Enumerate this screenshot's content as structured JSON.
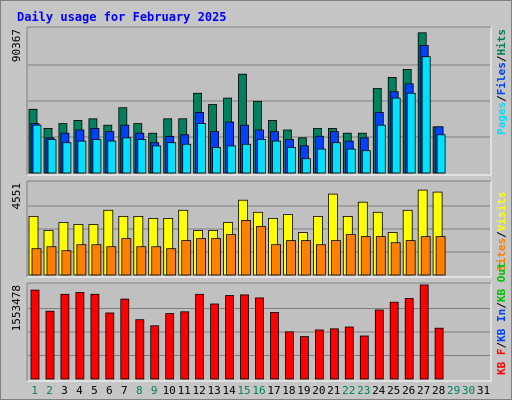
{
  "chart_data": {
    "type": "bar",
    "title": "Daily usage for February 2025",
    "colors": {
      "hits": "#00805c",
      "files": "#0040ff",
      "pages": "#00e0ff",
      "visits": "#ffff00",
      "sites": "#ff8000",
      "kbin": "#ff0000",
      "kbout": "#00c000",
      "title": "#0000ff",
      "day_weekday": "#000000",
      "day_weekend": "#00805c",
      "panel_bg": "#c0c0c0",
      "frame_bg": "#c6c6c6",
      "grid": "#808080"
    },
    "categories": [
      "1",
      "2",
      "3",
      "4",
      "5",
      "6",
      "7",
      "8",
      "9",
      "10",
      "11",
      "12",
      "13",
      "14",
      "15",
      "16",
      "17",
      "18",
      "19",
      "20",
      "21",
      "22",
      "23",
      "24",
      "25",
      "26",
      "27",
      "28",
      "29",
      "30",
      "31"
    ],
    "weekend_days": [
      "1",
      "2",
      "8",
      "9",
      "15",
      "16",
      "22",
      "23",
      "29",
      "30"
    ],
    "panels": [
      {
        "id": "usage",
        "max_label": "90367",
        "max": 90367,
        "legend": [
          {
            "text": "Pages",
            "color": "#00e0ff"
          },
          {
            "text": "/",
            "color": "#000000"
          },
          {
            "text": "Files",
            "color": "#0040ff"
          },
          {
            "text": "/",
            "color": "#000000"
          },
          {
            "text": "Hits",
            "color": "#00805c"
          }
        ],
        "series": [
          {
            "name": "Hits",
            "color": "#00805c",
            "values": [
              40000,
              28000,
              31000,
              33000,
              34000,
              30000,
              41000,
              31000,
              25000,
              34000,
              34000,
              50000,
              43000,
              47000,
              62000,
              45000,
              33000,
              27000,
              22000,
              28000,
              28000,
              25000,
              25000,
              53000,
              60000,
              65000,
              88000,
              29000,
              null,
              null,
              null
            ]
          },
          {
            "name": "Files",
            "color": "#0040ff",
            "values": [
              31000,
              22000,
              25000,
              27000,
              28000,
              26000,
              30000,
              25000,
              19000,
              23000,
              24000,
              38000,
              26000,
              32000,
              30000,
              27000,
              26000,
              21000,
              17000,
              23000,
              26000,
              20000,
              22000,
              38000,
              51000,
              56000,
              80000,
              29000,
              null,
              null,
              null
            ]
          },
          {
            "name": "Pages",
            "color": "#00e0ff",
            "values": [
              30000,
              21000,
              19000,
              20000,
              21000,
              20000,
              22000,
              21000,
              17000,
              19000,
              18000,
              31000,
              16000,
              17000,
              18000,
              21000,
              20000,
              16000,
              9000,
              15000,
              19000,
              15000,
              14000,
              30000,
              47000,
              50000,
              73000,
              24000,
              null,
              null,
              null
            ]
          }
        ]
      },
      {
        "id": "visits",
        "max_label": "4551",
        "max": 4551,
        "legend": [
          {
            "text": "Sites",
            "color": "#ff8000"
          },
          {
            "text": "/",
            "color": "#000000"
          },
          {
            "text": "Visits",
            "color": "#ffff00"
          }
        ],
        "series": [
          {
            "name": "Visits",
            "color": "#ffff00",
            "values": [
              2900,
              2200,
              2600,
              2500,
              2500,
              3200,
              2900,
              2900,
              2800,
              2800,
              3200,
              2200,
              2200,
              2600,
              3700,
              3100,
              2800,
              3000,
              2100,
              2900,
              4000,
              2900,
              3600,
              3100,
              2100,
              3200,
              4200,
              4100,
              null,
              null,
              null
            ]
          },
          {
            "name": "Sites",
            "color": "#ff8000",
            "values": [
              1300,
              1400,
              1200,
              1500,
              1500,
              1400,
              1800,
              1400,
              1400,
              1300,
              1700,
              1800,
              1800,
              2000,
              2700,
              2400,
              1500,
              1700,
              1700,
              1500,
              1700,
              2000,
              1900,
              1900,
              1600,
              1700,
              1900,
              1900,
              null,
              null,
              null
            ]
          }
        ]
      },
      {
        "id": "kbytes",
        "max_label": "1553478",
        "max": 1553478,
        "legend": [
          {
            "text": "KB F",
            "color": "#ff0000"
          },
          {
            "text": "/",
            "color": "#000000"
          },
          {
            "text": "KB In",
            "color": "#0040ff"
          },
          {
            "text": "/",
            "color": "#000000"
          },
          {
            "text": "KB Out",
            "color": "#00c000"
          }
        ],
        "series": [
          {
            "name": "KB F",
            "color": "#ff0000",
            "values": [
              1470000,
              1120000,
              1400000,
              1430000,
              1400000,
              1090000,
              1320000,
              980000,
              880000,
              1080000,
              1110000,
              1400000,
              1240000,
              1380000,
              1390000,
              1340000,
              1100000,
              780000,
              700000,
              810000,
              830000,
              860000,
              710000,
              1140000,
              1270000,
              1330000,
              1553478,
              840000,
              null,
              null,
              null
            ]
          }
        ]
      }
    ]
  }
}
